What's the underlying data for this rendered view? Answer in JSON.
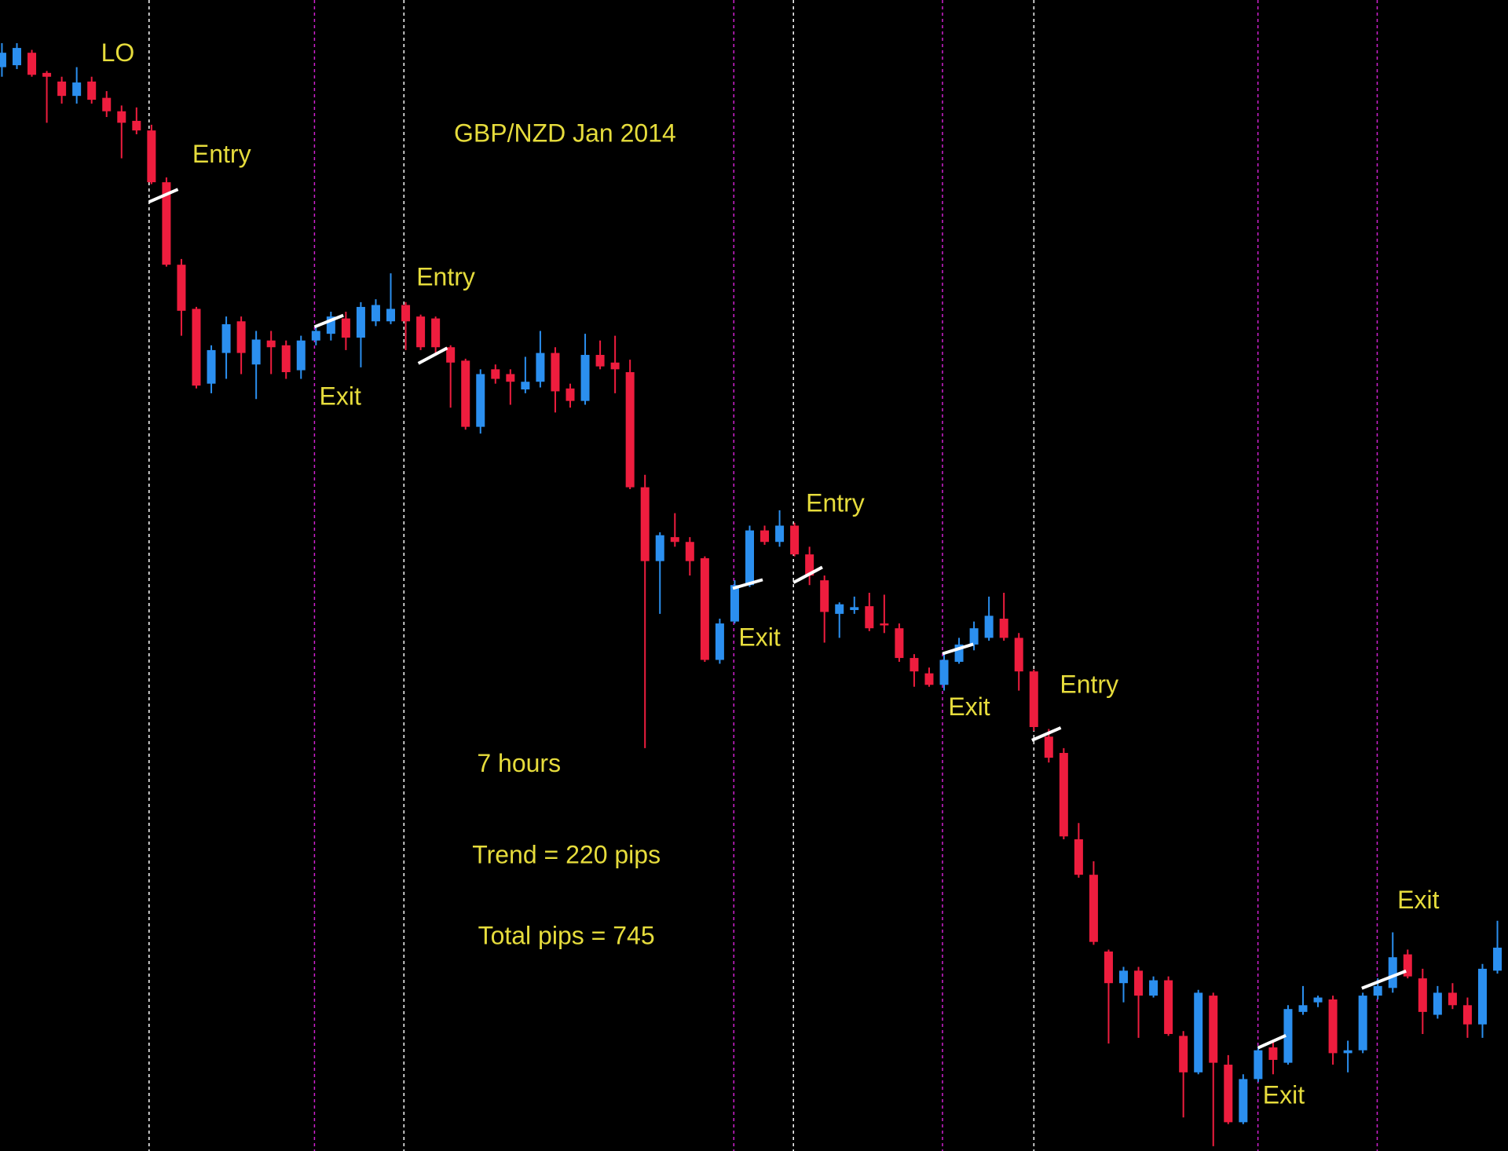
{
  "chart_data": {
    "type": "candlestick",
    "title": "GBP/NZD Jan 2014",
    "annotations": [
      "LO",
      "Entry",
      "Entry",
      "Exit",
      "Entry",
      "Exit",
      "Entry",
      "Exit",
      "7 hours",
      "Trend = 220 pips",
      "Total pips = 745",
      "Exit",
      "Exit"
    ],
    "ylim": [
      1.9,
      2.02
    ],
    "up_color": "#2b8fef",
    "down_color": "#ee1d3e",
    "ohlc": [
      [
        2.013,
        2.0155,
        2.012,
        2.0145
      ],
      [
        2.0132,
        2.0155,
        2.0128,
        2.015
      ],
      [
        2.0145,
        2.0148,
        2.012,
        2.0122
      ],
      [
        2.0124,
        2.0126,
        2.0072,
        2.012
      ],
      [
        2.0115,
        2.012,
        2.0092,
        2.01
      ],
      [
        2.01,
        2.013,
        2.0092,
        2.0114
      ],
      [
        2.0115,
        2.012,
        2.0092,
        2.0096
      ],
      [
        2.0098,
        2.0105,
        2.0078,
        2.0084
      ],
      [
        2.0084,
        2.009,
        2.0035,
        2.0072
      ],
      [
        2.0074,
        2.0088,
        2.006,
        2.0064
      ],
      [
        2.0064,
        2.007,
        2.0008,
        2.001
      ],
      [
        2.001,
        2.0015,
        1.9922,
        1.9924
      ],
      [
        1.9924,
        1.993,
        1.985,
        1.9876
      ],
      [
        1.9878,
        1.988,
        1.9795,
        1.9798
      ],
      [
        1.98,
        1.984,
        1.979,
        1.9835
      ],
      [
        1.9832,
        1.987,
        1.9805,
        1.9862
      ],
      [
        1.9865,
        1.987,
        1.981,
        1.9832
      ],
      [
        1.982,
        1.9855,
        1.9784,
        1.9846
      ],
      [
        1.9845,
        1.9855,
        1.981,
        1.9838
      ],
      [
        1.984,
        1.9845,
        1.9805,
        1.9812
      ],
      [
        1.9814,
        1.985,
        1.9805,
        1.9845
      ],
      [
        1.9845,
        1.986,
        1.984,
        1.9855
      ],
      [
        1.9852,
        1.9875,
        1.9845,
        1.987
      ],
      [
        1.9868,
        1.9875,
        1.9835,
        1.9848
      ],
      [
        1.9848,
        1.9885,
        1.9817,
        1.988
      ],
      [
        1.9865,
        1.9888,
        1.986,
        1.9882
      ],
      [
        1.9865,
        1.9915,
        1.9862,
        1.9878
      ],
      [
        1.9882,
        1.9885,
        1.9835,
        1.9865
      ],
      [
        1.987,
        1.9872,
        1.9835,
        1.9838
      ],
      [
        1.9868,
        1.987,
        1.9832,
        1.9838
      ],
      [
        1.9838,
        1.984,
        1.9775,
        1.9822
      ],
      [
        1.9824,
        1.9826,
        1.9752,
        1.9755
      ],
      [
        1.9755,
        1.9815,
        1.9748,
        1.981
      ],
      [
        1.9815,
        1.982,
        1.98,
        1.9805
      ],
      [
        1.981,
        1.9815,
        1.9778,
        1.9802
      ],
      [
        1.9794,
        1.9828,
        1.979,
        1.9802
      ],
      [
        1.9802,
        1.9855,
        1.9796,
        1.9832
      ],
      [
        1.9832,
        1.9838,
        1.977,
        1.9792
      ],
      [
        1.9795,
        1.98,
        1.9775,
        1.9782
      ],
      [
        1.9782,
        1.9852,
        1.9778,
        1.983
      ],
      [
        1.983,
        1.9845,
        1.9815,
        1.9818
      ],
      [
        1.9822,
        1.985,
        1.979,
        1.9815
      ],
      [
        1.9812,
        1.9825,
        1.969,
        1.9692
      ],
      [
        1.9692,
        1.9705,
        1.942,
        1.9615
      ],
      [
        1.9615,
        1.9645,
        1.956,
        1.9642
      ],
      [
        1.964,
        1.9665,
        1.963,
        1.9635
      ],
      [
        1.9635,
        1.964,
        1.96,
        1.9615
      ],
      [
        1.9618,
        1.962,
        1.951,
        1.9512
      ],
      [
        1.9512,
        1.9555,
        1.9508,
        1.955
      ],
      [
        1.9552,
        1.9595,
        1.955,
        1.959
      ],
      [
        1.959,
        1.9652,
        1.9588,
        1.9647
      ],
      [
        1.9647,
        1.9652,
        1.9632,
        1.9635
      ],
      [
        1.9635,
        1.9668,
        1.963,
        1.9652
      ],
      [
        1.9652,
        1.9655,
        1.962,
        1.9622
      ],
      [
        1.9622,
        1.963,
        1.959,
        1.96
      ],
      [
        1.9595,
        1.96,
        1.953,
        1.9562
      ],
      [
        1.956,
        1.9572,
        1.9535,
        1.957
      ],
      [
        1.9564,
        1.9578,
        1.956,
        1.9567
      ],
      [
        1.9568,
        1.9582,
        1.9542,
        1.9545
      ],
      [
        1.955,
        1.958,
        1.954,
        1.9548
      ],
      [
        1.9545,
        1.955,
        1.951,
        1.9514
      ],
      [
        1.9514,
        1.9518,
        1.9484,
        1.95
      ],
      [
        1.9498,
        1.9504,
        1.9484,
        1.9486
      ],
      [
        1.9486,
        1.952,
        1.948,
        1.9512
      ],
      [
        1.951,
        1.9535,
        1.9508,
        1.9528
      ],
      [
        1.9528,
        1.9552,
        1.9522,
        1.9545
      ],
      [
        1.9535,
        1.9578,
        1.9532,
        1.9558
      ],
      [
        1.9555,
        1.9582,
        1.9532,
        1.9535
      ],
      [
        1.9535,
        1.954,
        1.948,
        1.95
      ],
      [
        1.95,
        1.9502,
        1.9438,
        1.9442
      ],
      [
        1.9432,
        1.944,
        1.9405,
        1.941
      ],
      [
        1.9415,
        1.942,
        1.9325,
        1.9328
      ],
      [
        1.9325,
        1.9342,
        1.9285,
        1.9288
      ],
      [
        1.9288,
        1.9302,
        1.9215,
        1.9218
      ],
      [
        1.9208,
        1.921,
        1.9112,
        1.9175
      ],
      [
        1.9175,
        1.9192,
        1.9155,
        1.9188
      ],
      [
        1.9188,
        1.9192,
        1.9118,
        1.9162
      ],
      [
        1.9162,
        1.9182,
        1.916,
        1.9178
      ],
      [
        1.9178,
        1.9182,
        1.912,
        1.9122
      ],
      [
        1.912,
        1.9125,
        1.9035,
        1.9082
      ],
      [
        1.9082,
        1.9168,
        1.908,
        1.9165
      ],
      [
        1.9162,
        1.9165,
        1.9005,
        1.9092
      ],
      [
        1.909,
        1.91,
        1.9028,
        1.903
      ],
      [
        1.903,
        1.908,
        1.9028,
        1.9075
      ],
      [
        1.9075,
        1.9108,
        1.9072,
        1.9105
      ],
      [
        1.9108,
        1.9115,
        1.908,
        1.9095
      ],
      [
        1.9092,
        1.9152,
        1.909,
        1.9148
      ],
      [
        1.9145,
        1.9172,
        1.9142,
        1.9152
      ],
      [
        1.9155,
        1.9162,
        1.915,
        1.916
      ],
      [
        1.9158,
        1.9162,
        1.909,
        1.9102
      ],
      [
        1.9102,
        1.9115,
        1.9082,
        1.9105
      ],
      [
        1.9105,
        1.9165,
        1.9102,
        1.9162
      ],
      [
        1.9162,
        1.918,
        1.9158,
        1.9172
      ],
      [
        1.917,
        1.9228,
        1.9165,
        1.9202
      ],
      [
        1.9205,
        1.921,
        1.918,
        1.9182
      ],
      [
        1.918,
        1.919,
        1.9122,
        1.9145
      ],
      [
        1.9142,
        1.9172,
        1.9138,
        1.9165
      ],
      [
        1.9165,
        1.9175,
        1.9148,
        1.9152
      ],
      [
        1.9152,
        1.916,
        1.9118,
        1.9132
      ],
      [
        1.9132,
        1.9195,
        1.9118,
        1.919
      ],
      [
        1.9188,
        1.924,
        1.9185,
        1.9212
      ]
    ]
  }
}
